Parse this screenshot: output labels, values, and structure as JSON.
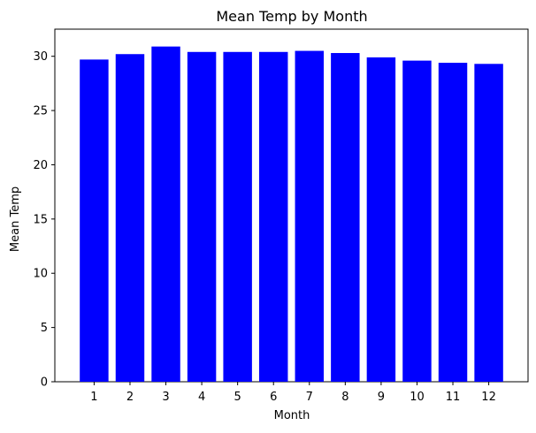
{
  "chart_data": {
    "type": "bar",
    "title": "Mean Temp by Month",
    "xlabel": "Month",
    "ylabel": "Mean Temp",
    "categories": [
      "1",
      "2",
      "3",
      "4",
      "5",
      "6",
      "7",
      "8",
      "9",
      "10",
      "11",
      "12"
    ],
    "values": [
      29.7,
      30.2,
      30.9,
      30.4,
      30.4,
      30.4,
      30.5,
      30.3,
      29.9,
      29.6,
      29.4,
      29.3
    ],
    "ylim": [
      0,
      32.5
    ],
    "yticks": [
      0,
      5,
      10,
      15,
      20,
      25,
      30
    ],
    "bar_color": "#0000ff",
    "grid": false,
    "legend": "none"
  }
}
